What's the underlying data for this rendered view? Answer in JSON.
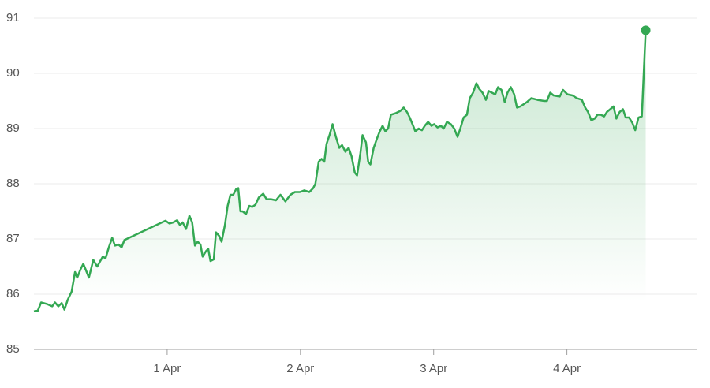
{
  "chart_data": {
    "type": "line",
    "x": [
      0,
      0.7,
      1.3,
      2.4,
      3.3,
      3.8,
      4.4,
      5.0,
      5.5,
      6.1,
      6.8,
      7.4,
      7.8,
      8.4,
      8.9,
      9.5,
      9.9,
      10.7,
      11.4,
      12.4,
      12.9,
      13.5,
      14.1,
      14.6,
      15.2,
      15.8,
      16.3,
      23.7,
      24.4,
      25.1,
      25.8,
      26.3,
      26.8,
      27.4,
      28.0,
      28.5,
      29.0,
      29.5,
      30.0,
      30.4,
      31.0,
      31.4,
      31.8,
      32.4,
      32.8,
      33.4,
      33.8,
      34.4,
      34.9,
      35.4,
      35.9,
      36.4,
      36.8,
      37.2,
      37.6,
      38.2,
      38.8,
      39.3,
      39.9,
      40.5,
      41.3,
      41.9,
      42.7,
      43.6,
      44.4,
      45.3,
      46.2,
      47.0,
      47.9,
      48.7,
      49.6,
      50.3,
      50.7,
      51.3,
      51.8,
      52.3,
      52.7,
      53.3,
      53.8,
      54.4,
      55.0,
      55.5,
      56.1,
      56.7,
      57.2,
      57.8,
      58.2,
      58.8,
      59.2,
      59.8,
      60.2,
      60.6,
      61.2,
      61.8,
      62.3,
      62.8,
      63.3,
      63.8,
      64.3,
      65.2,
      66.0,
      66.6,
      67.2,
      67.7,
      68.3,
      68.7,
      69.3,
      69.9,
      70.4,
      71.0,
      71.6,
      72.1,
      72.7,
      73.3,
      73.8,
      74.4,
      75.1,
      75.7,
      76.3,
      76.8,
      77.4,
      78.0,
      78.5,
      79.1,
      79.7,
      80.2,
      80.8,
      81.4,
      81.9,
      82.5,
      83.1,
      83.6,
      84.2,
      84.8,
      85.3,
      85.9,
      86.5,
      87.0,
      87.6,
      88.8,
      89.6,
      90.7,
      91.9,
      92.4,
      93.0,
      93.6,
      94.7,
      95.3,
      96.1,
      97.0,
      97.8,
      98.7,
      99.3,
      99.8,
      100.4,
      101.0,
      101.5,
      102.1,
      102.7,
      103.2,
      103.8,
      104.4,
      104.9,
      105.5,
      106.1,
      106.6,
      107.2,
      107.8,
      108.3,
      108.9,
      109.5,
      110.2
    ],
    "series": [
      {
        "color": "#34a853",
        "values": [
          85.69,
          85.7,
          85.85,
          85.82,
          85.78,
          85.85,
          85.78,
          85.84,
          85.72,
          85.9,
          86.05,
          86.4,
          86.3,
          86.45,
          86.55,
          86.4,
          86.3,
          86.62,
          86.5,
          86.68,
          86.65,
          86.85,
          87.02,
          86.88,
          86.9,
          86.85,
          86.98,
          87.33,
          87.28,
          87.3,
          87.34,
          87.25,
          87.3,
          87.18,
          87.42,
          87.3,
          86.88,
          86.95,
          86.9,
          86.68,
          86.78,
          86.82,
          86.6,
          86.63,
          87.12,
          87.05,
          86.95,
          87.25,
          87.6,
          87.8,
          87.8,
          87.9,
          87.92,
          87.5,
          87.5,
          87.45,
          87.6,
          87.58,
          87.62,
          87.75,
          87.82,
          87.72,
          87.72,
          87.7,
          87.8,
          87.68,
          87.8,
          87.85,
          87.85,
          87.88,
          87.85,
          87.92,
          88.0,
          88.4,
          88.45,
          88.4,
          88.72,
          88.9,
          89.08,
          88.85,
          88.65,
          88.7,
          88.58,
          88.65,
          88.5,
          88.2,
          88.15,
          88.55,
          88.88,
          88.75,
          88.4,
          88.35,
          88.65,
          88.82,
          88.95,
          89.05,
          88.95,
          89.0,
          89.25,
          89.28,
          89.32,
          89.38,
          89.3,
          89.2,
          89.05,
          88.95,
          89.0,
          88.97,
          89.05,
          89.12,
          89.05,
          89.08,
          89.02,
          89.05,
          89.0,
          89.12,
          89.08,
          89.0,
          88.85,
          89.0,
          89.2,
          89.25,
          89.55,
          89.65,
          89.82,
          89.72,
          89.65,
          89.52,
          89.68,
          89.65,
          89.62,
          89.75,
          89.7,
          89.48,
          89.65,
          89.75,
          89.62,
          89.38,
          89.4,
          89.48,
          89.55,
          89.52,
          89.5,
          89.5,
          89.65,
          89.6,
          89.58,
          89.7,
          89.62,
          89.6,
          89.55,
          89.52,
          89.38,
          89.3,
          89.15,
          89.18,
          89.25,
          89.25,
          89.22,
          89.3,
          89.35,
          89.4,
          89.18,
          89.3,
          89.35,
          89.2,
          89.2,
          89.1,
          88.97,
          89.2,
          89.22,
          90.78
        ]
      }
    ],
    "xlim": [
      0,
      119.5
    ],
    "xticks": [
      {
        "value": 24,
        "label": "1 Apr"
      },
      {
        "value": 48,
        "label": "2 Apr"
      },
      {
        "value": 72,
        "label": "3 Apr"
      },
      {
        "value": 96,
        "label": "4 Apr"
      }
    ],
    "ylim": [
      85,
      91
    ],
    "yticks": [
      85,
      86,
      87,
      88,
      89,
      90,
      91
    ],
    "grid": true
  }
}
